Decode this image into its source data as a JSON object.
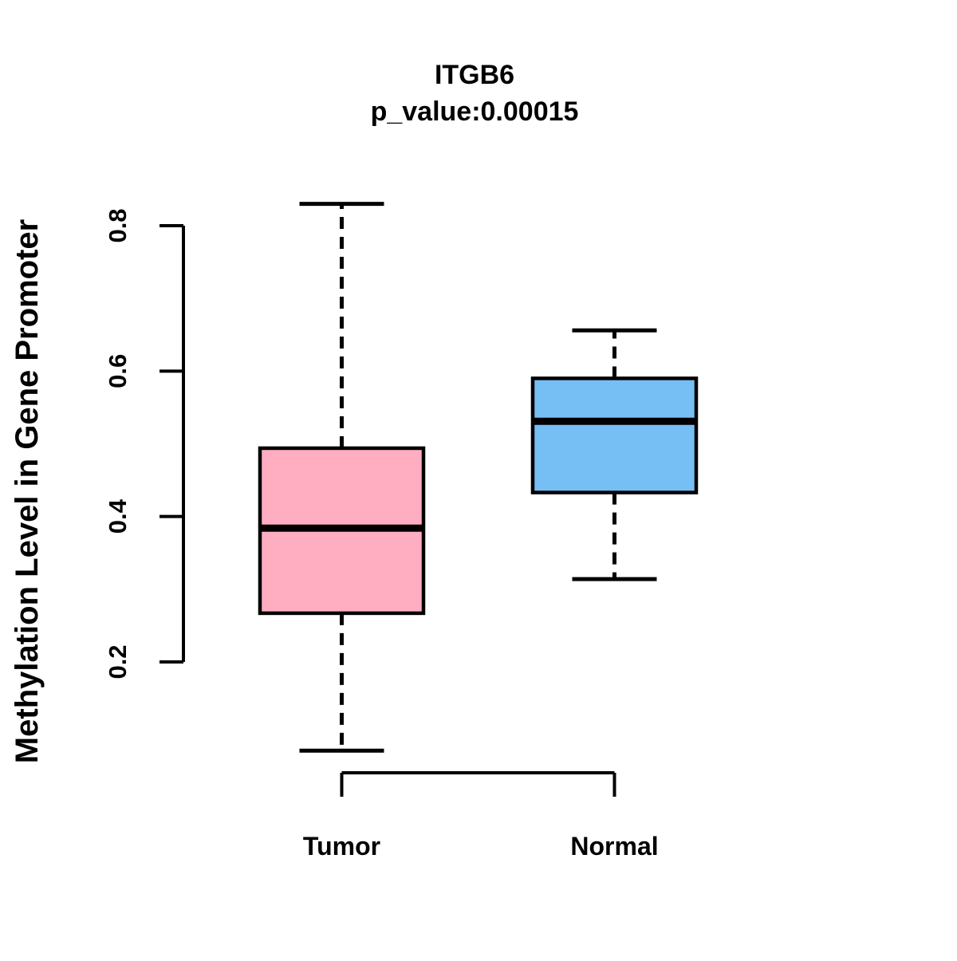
{
  "chart_data": {
    "type": "boxplot",
    "title": "ITGB6",
    "subtitle": "p_value:0.00015",
    "gene": "ITGB6",
    "p_value": 0.00015,
    "ylabel": "Methylation Level in Gene Promoter",
    "xlabel": "",
    "categories": [
      "Tumor",
      "Normal"
    ],
    "series": [
      {
        "name": "Tumor",
        "lower_whisker": 0.078,
        "q1": 0.267,
        "median": 0.384,
        "q3": 0.494,
        "upper_whisker": 0.83,
        "fill_color": "#FFAEC1"
      },
      {
        "name": "Normal",
        "lower_whisker": 0.314,
        "q1": 0.433,
        "median": 0.531,
        "q3": 0.59,
        "upper_whisker": 0.656,
        "fill_color": "#76BFF5"
      }
    ],
    "y_axis": {
      "tick_values": [
        0.2,
        0.4,
        0.6,
        0.8
      ],
      "tick_labels": [
        "0.2",
        "0.4",
        "0.6",
        "0.8"
      ],
      "range_shown": [
        0.2,
        0.8
      ]
    },
    "grid": false,
    "legend_position": "none",
    "colors": {
      "background": "#FFFFFF",
      "stroke": "#000000",
      "tumor_fill": "#FFAEC1",
      "normal_fill": "#76BFF5"
    }
  }
}
